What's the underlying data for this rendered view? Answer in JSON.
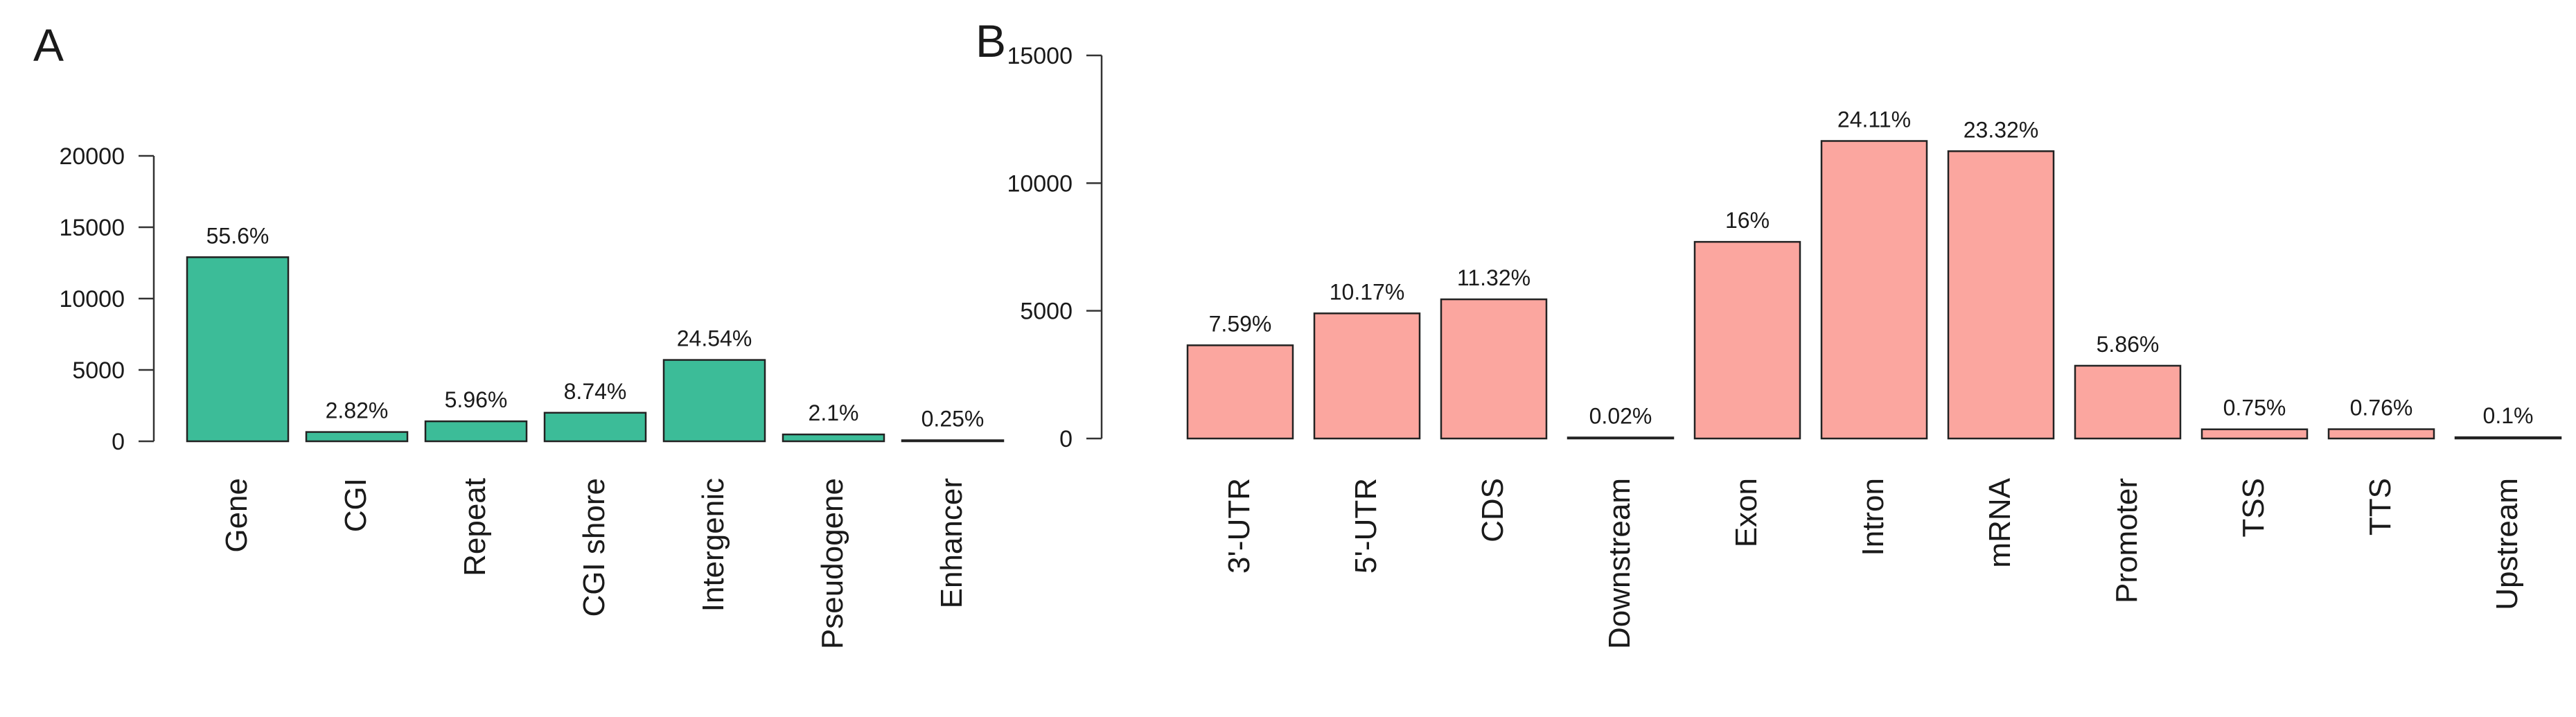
{
  "chart_data": [
    {
      "panel": "A",
      "type": "bar",
      "title": "",
      "xlabel": "",
      "ylabel": "",
      "categories": [
        "Gene",
        "CGI",
        "Repeat",
        "CGI shore",
        "Intergenic",
        "Pseudogene",
        "Enhancer"
      ],
      "values": [
        12900,
        650,
        1400,
        2000,
        5700,
        480,
        60
      ],
      "labels": [
        "55.6%",
        "2.82%",
        "5.96%",
        "8.74%",
        "24.54%",
        "2.1%",
        "0.25%"
      ],
      "ylim": [
        0,
        20000
      ],
      "yticks": [
        "0",
        "5000",
        "10000",
        "15000",
        "20000"
      ],
      "color": "#3cbc98"
    },
    {
      "panel": "B",
      "type": "bar",
      "title": "",
      "xlabel": "",
      "ylabel": "",
      "categories": [
        "3'-UTR",
        "5'-UTR",
        "CDS",
        "Downstream",
        "Exon",
        "Intron",
        "mRNA",
        "Promoter",
        "TSS",
        "TTS",
        "Upstream"
      ],
      "values": [
        3650,
        4900,
        5450,
        10,
        7700,
        11650,
        11250,
        2850,
        360,
        365,
        50
      ],
      "labels": [
        "7.59%",
        "10.17%",
        "11.32%",
        "0.02%",
        "16%",
        "24.11%",
        "23.32%",
        "5.86%",
        "0.75%",
        "0.76%",
        "0.1%"
      ],
      "ylim": [
        0,
        15000
      ],
      "yticks": [
        "0",
        "5000",
        "10000",
        "15000"
      ],
      "color": "#fba69f"
    }
  ]
}
